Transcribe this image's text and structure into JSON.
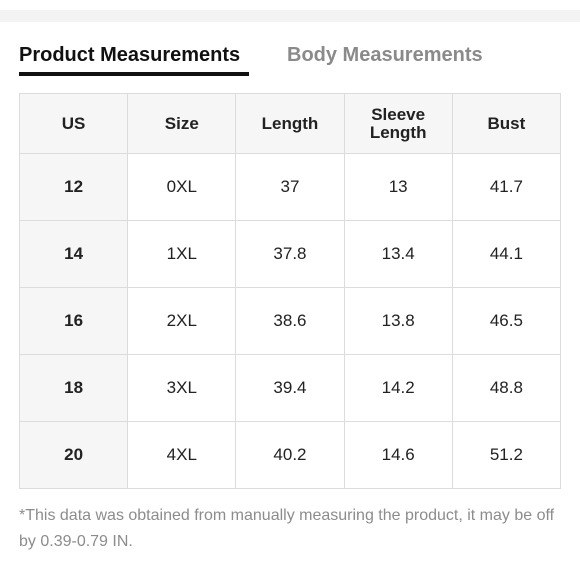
{
  "tabs": [
    "Product Measurements",
    "Body Measurements"
  ],
  "table": {
    "header": [
      "US",
      "Size",
      "Length",
      "Sleeve Length",
      "Bust"
    ],
    "rows": [
      [
        "12",
        "0XL",
        "37",
        "13",
        "41.7"
      ],
      [
        "14",
        "1XL",
        "37.8",
        "13.4",
        "44.1"
      ],
      [
        "16",
        "2XL",
        "38.6",
        "13.8",
        "46.5"
      ],
      [
        "18",
        "3XL",
        "39.4",
        "14.2",
        "48.8"
      ],
      [
        "20",
        "4XL",
        "40.2",
        "14.6",
        "51.2"
      ]
    ]
  },
  "note": "*This data was obtained from manually measuring the product, it may be off by 0.39-0.79 IN."
}
